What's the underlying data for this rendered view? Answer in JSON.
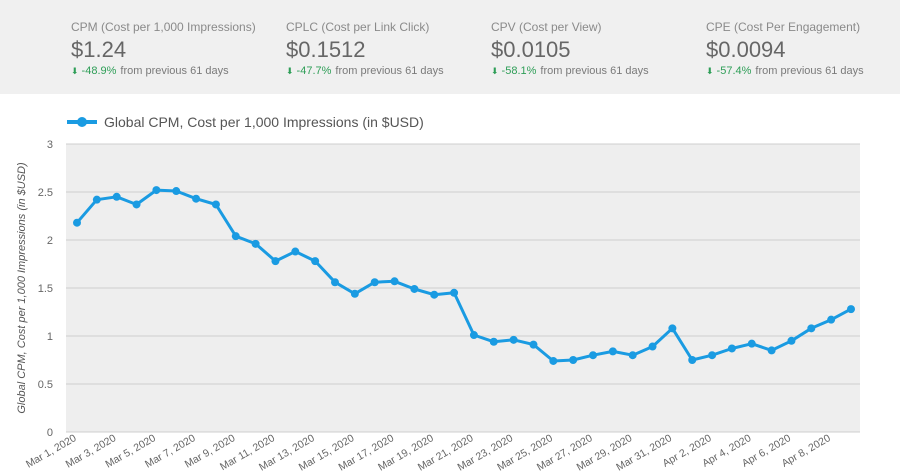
{
  "kpis": [
    {
      "label": "CPM (Cost per 1,000 Impressions)",
      "value": "$1.24",
      "change": "-48.9%",
      "suffix": "from previous 61 days"
    },
    {
      "label": "CPLC (Cost per Link Click)",
      "value": "$0.1512",
      "change": "-47.7%",
      "suffix": "from previous 61 days"
    },
    {
      "label": "CPV (Cost per View)",
      "value": "$0.0105",
      "change": "-58.1%",
      "suffix": "from previous 61 days"
    },
    {
      "label": "CPE (Cost Per Engagement)",
      "value": "$0.0094",
      "change": "-57.4%",
      "suffix": "from previous 61 days"
    }
  ],
  "colors": {
    "line": "#1a9be2",
    "grid": "#cfcfcf",
    "plot_bg": "#eeeeee",
    "change_down": "#2e9e57"
  },
  "chart_data": {
    "type": "line",
    "legend": "Global CPM, Cost per 1,000 Impressions (in $USD)",
    "ylabel": "Global CPM, Cost per 1,000 Impressions (in $USD)",
    "xlabel": "",
    "ylim": [
      0,
      3
    ],
    "yticks": [
      "0",
      "0.5",
      "1",
      "1.5",
      "2",
      "2.5",
      "3"
    ],
    "xtick_labels": [
      "Mar 1, 2020",
      "Mar 3, 2020",
      "Mar 5, 2020",
      "Mar 7, 2020",
      "Mar 9, 2020",
      "Mar 11, 2020",
      "Mar 13, 2020",
      "Mar 15, 2020",
      "Mar 17, 2020",
      "Mar 19, 2020",
      "Mar 21, 2020",
      "Mar 23, 2020",
      "Mar 25, 2020",
      "Mar 27, 2020",
      "Mar 29, 2020",
      "Mar 31, 2020",
      "Apr 2, 2020",
      "Apr 4, 2020",
      "Apr 6, 2020",
      "Apr 8, 2020"
    ],
    "xtick_every": 2,
    "values": [
      2.18,
      2.42,
      2.45,
      2.37,
      2.52,
      2.51,
      2.43,
      2.37,
      2.04,
      1.96,
      1.78,
      1.88,
      1.78,
      1.56,
      1.44,
      1.56,
      1.57,
      1.49,
      1.43,
      1.45,
      1.01,
      0.94,
      0.96,
      0.91,
      0.74,
      0.75,
      0.8,
      0.84,
      0.8,
      0.89,
      1.08,
      0.75,
      0.8,
      0.87,
      0.92,
      0.85,
      0.95,
      1.08,
      1.17,
      1.28
    ]
  }
}
